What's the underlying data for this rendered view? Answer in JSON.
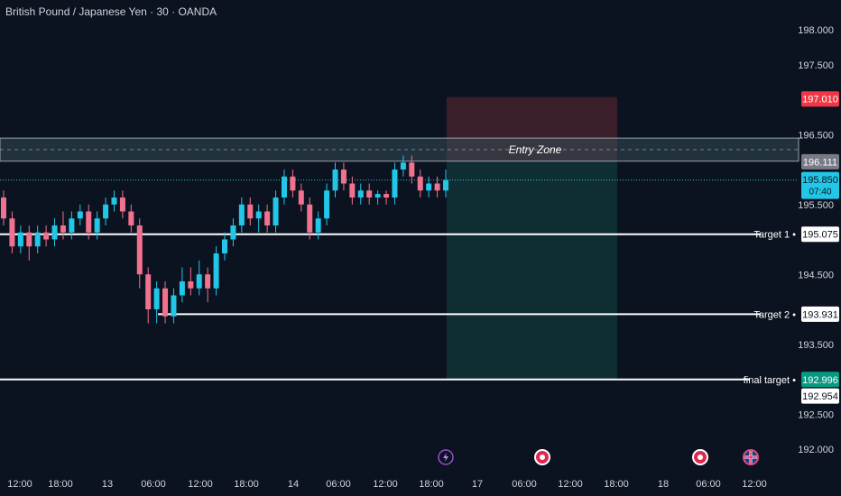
{
  "header": {
    "title": "British Pound / Japanese Yen · 30 · OANDA"
  },
  "theme": {
    "background": "#0b1220",
    "up": "#22c7e8",
    "down": "#f0728f",
    "text": "#d1d4dc",
    "sell_box": "#3a1f2b",
    "profit_box": "#0f2e33",
    "entry_band": "#344a56"
  },
  "chart_data": {
    "type": "candlestick",
    "y_ticks": [
      "198.000",
      "197.500",
      "196.500",
      "195.500",
      "194.500",
      "193.500",
      "192.500",
      "192.000"
    ],
    "x_ticks": [
      "12:00",
      "18:00",
      "13",
      "06:00",
      "12:00",
      "18:00",
      "14",
      "06:00",
      "12:00",
      "18:00",
      "17",
      "06:00",
      "12:00",
      "18:00",
      "18",
      "06:00",
      "12:00"
    ],
    "ylim": [
      191.9,
      198.2
    ],
    "price_labels": [
      {
        "name": "stop-price",
        "value": "197.010",
        "bg": "#f23645",
        "fg": "#ffffff"
      },
      {
        "name": "entry-price",
        "value": "196.111",
        "bg": "#787b86",
        "fg": "#ffffff"
      },
      {
        "name": "last-price",
        "value": "195.850",
        "bg": "#22c7e8",
        "fg": "#0b1220",
        "sub": "07:40"
      },
      {
        "name": "target1-price",
        "value": "195.075",
        "bg": "#ffffff",
        "fg": "#0b1220"
      },
      {
        "name": "target2-price",
        "value": "193.931",
        "bg": "#ffffff",
        "fg": "#0b1220"
      },
      {
        "name": "final-target-price",
        "value": "192.996",
        "bg": "#089981",
        "fg": "#ffffff"
      },
      {
        "name": "low-price",
        "value": "192.954",
        "bg": "#ffffff",
        "fg": "#0b1220"
      }
    ],
    "levels": [
      {
        "label": "Target 1",
        "value": 195.075
      },
      {
        "label": "Target 2",
        "value": 193.931
      },
      {
        "label": "final target",
        "value": 192.996
      }
    ],
    "entry_zone": {
      "label": "Entry Zone",
      "top": 196.45,
      "bottom": 196.12
    },
    "stop_box": {
      "top": 197.01,
      "bottom": 196.12
    },
    "profit_box": {
      "top": 196.12,
      "bottom": 192.996
    },
    "event_icons": [
      "lightning-icon",
      "calendar-dot-icon",
      "calendar-dot-icon",
      "uk-flag-icon"
    ],
    "candles": [
      [
        195.6,
        195.3,
        195.7,
        195.2
      ],
      [
        195.3,
        194.9,
        195.4,
        194.8
      ],
      [
        194.9,
        195.1,
        195.2,
        194.8
      ],
      [
        195.1,
        194.9,
        195.2,
        194.7
      ],
      [
        194.9,
        195.1,
        195.2,
        194.8
      ],
      [
        195.1,
        195.0,
        195.2,
        194.9
      ],
      [
        195.0,
        195.2,
        195.3,
        194.9
      ],
      [
        195.2,
        195.1,
        195.4,
        195.0
      ],
      [
        195.1,
        195.3,
        195.4,
        195.0
      ],
      [
        195.3,
        195.4,
        195.5,
        195.2
      ],
      [
        195.4,
        195.1,
        195.5,
        195.0
      ],
      [
        195.1,
        195.3,
        195.4,
        195.0
      ],
      [
        195.3,
        195.5,
        195.6,
        195.2
      ],
      [
        195.5,
        195.6,
        195.7,
        195.4
      ],
      [
        195.6,
        195.4,
        195.7,
        195.3
      ],
      [
        195.4,
        195.2,
        195.5,
        195.1
      ],
      [
        195.2,
        194.5,
        195.3,
        194.3
      ],
      [
        194.5,
        194.0,
        194.6,
        193.8
      ],
      [
        194.0,
        194.3,
        194.4,
        193.8
      ],
      [
        194.3,
        193.9,
        194.4,
        193.8
      ],
      [
        193.9,
        194.2,
        194.3,
        193.8
      ],
      [
        194.2,
        194.4,
        194.6,
        194.1
      ],
      [
        194.4,
        194.3,
        194.6,
        194.2
      ],
      [
        194.3,
        194.5,
        194.7,
        194.2
      ],
      [
        194.5,
        194.3,
        194.6,
        194.1
      ],
      [
        194.3,
        194.8,
        194.9,
        194.2
      ],
      [
        194.8,
        195.0,
        195.1,
        194.7
      ],
      [
        195.0,
        195.2,
        195.3,
        194.9
      ],
      [
        195.2,
        195.5,
        195.6,
        195.1
      ],
      [
        195.5,
        195.3,
        195.6,
        195.2
      ],
      [
        195.3,
        195.4,
        195.5,
        195.1
      ],
      [
        195.4,
        195.2,
        195.5,
        195.1
      ],
      [
        195.2,
        195.6,
        195.7,
        195.1
      ],
      [
        195.6,
        195.9,
        196.0,
        195.5
      ],
      [
        195.9,
        195.7,
        196.0,
        195.6
      ],
      [
        195.7,
        195.5,
        195.8,
        195.4
      ],
      [
        195.5,
        195.1,
        195.6,
        195.0
      ],
      [
        195.1,
        195.3,
        195.4,
        195.0
      ],
      [
        195.3,
        195.7,
        195.8,
        195.2
      ],
      [
        195.7,
        196.0,
        196.1,
        195.6
      ],
      [
        196.0,
        195.8,
        196.1,
        195.7
      ],
      [
        195.8,
        195.6,
        195.9,
        195.5
      ],
      [
        195.6,
        195.7,
        195.8,
        195.5
      ],
      [
        195.7,
        195.6,
        195.8,
        195.5
      ],
      [
        195.6,
        195.65,
        195.7,
        195.5
      ],
      [
        195.65,
        195.6,
        195.7,
        195.5
      ],
      [
        195.6,
        196.0,
        196.1,
        195.5
      ],
      [
        196.0,
        196.1,
        196.2,
        195.9
      ],
      [
        196.1,
        195.9,
        196.2,
        195.8
      ],
      [
        195.9,
        195.7,
        196.0,
        195.6
      ],
      [
        195.7,
        195.8,
        195.9,
        195.6
      ],
      [
        195.8,
        195.7,
        195.9,
        195.6
      ],
      [
        195.7,
        195.85,
        196.0,
        195.6
      ]
    ]
  }
}
